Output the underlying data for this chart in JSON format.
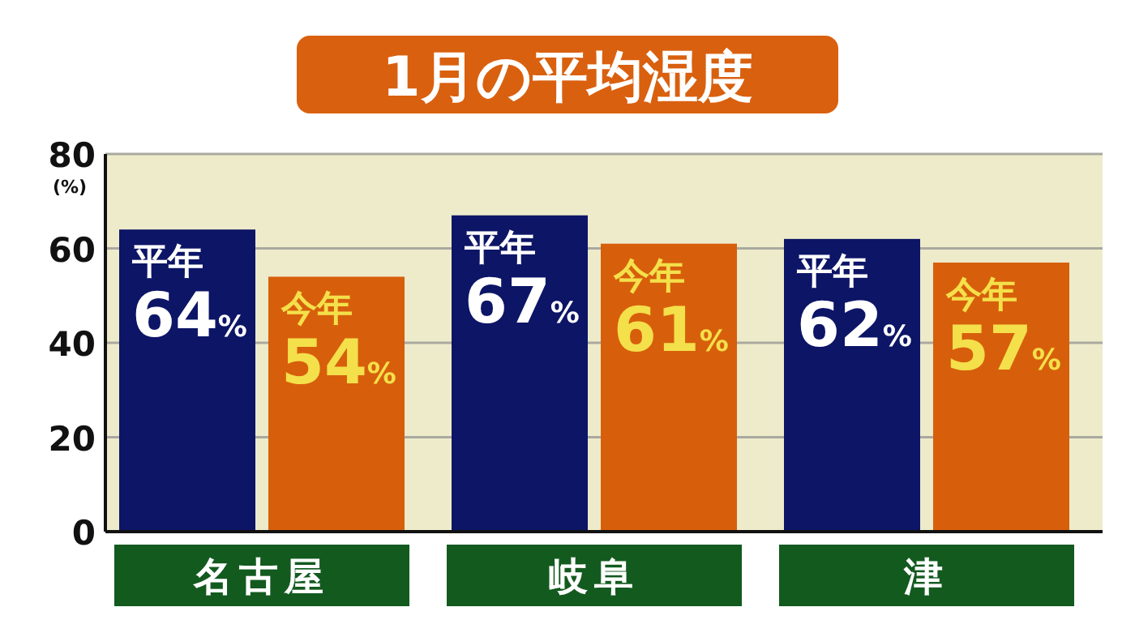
{
  "chart_data": {
    "type": "bar",
    "title": "1月の平均湿度",
    "ylabel": "(%)",
    "categories": [
      "名古屋",
      "岐阜",
      "津"
    ],
    "series": [
      {
        "name": "平年",
        "color": "#0d1566",
        "values": [
          64,
          67,
          62
        ],
        "value_labels": [
          "64%",
          "67%",
          "62%"
        ]
      },
      {
        "name": "今年",
        "color": "#d75f0c",
        "values": [
          54,
          61,
          57
        ],
        "value_labels": [
          "54%",
          "61%",
          "57%"
        ]
      }
    ],
    "ylim": [
      0,
      80
    ],
    "yticks": [
      0,
      20,
      40,
      60,
      80
    ],
    "grid": "y",
    "legend": false
  }
}
